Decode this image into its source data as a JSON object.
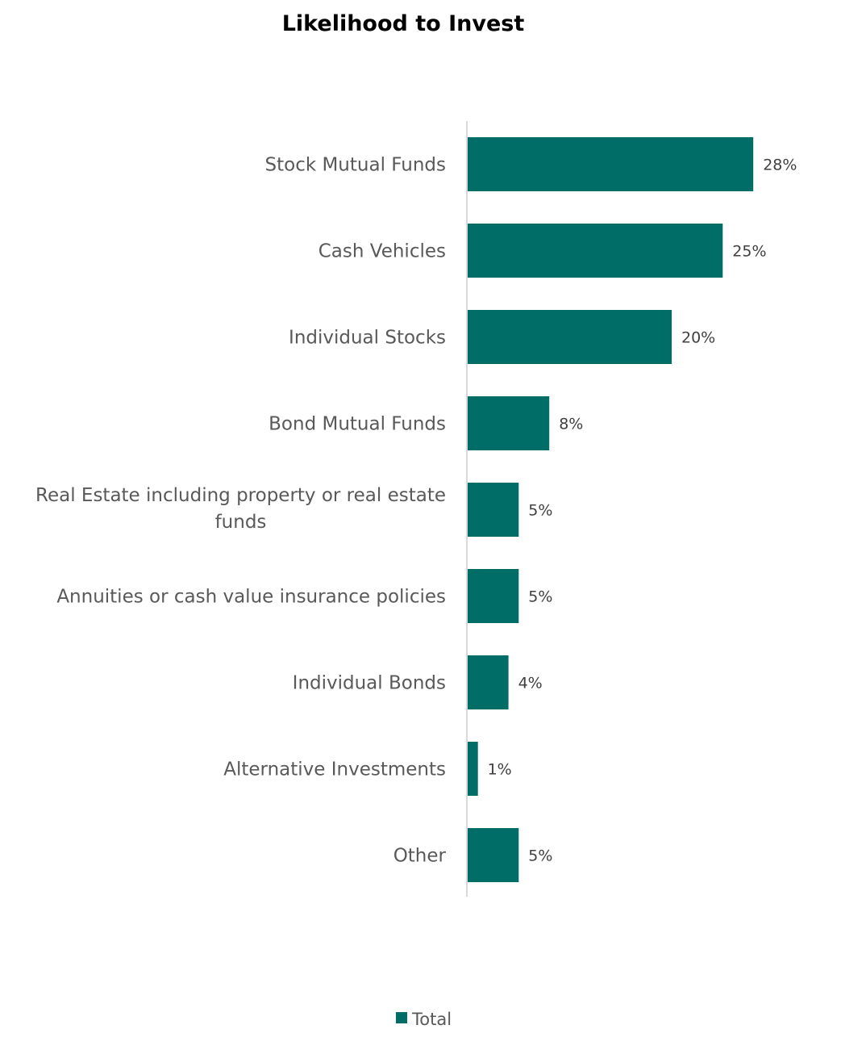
{
  "chart_data": {
    "type": "bar",
    "orientation": "horizontal",
    "title": "Likelihood to Invest",
    "categories": [
      "Stock Mutual Funds",
      "Cash Vehicles",
      "Individual Stocks",
      "Bond Mutual Funds",
      "Real Estate including property or real estate funds",
      "Annuities or cash value insurance policies",
      "Individual Bonds",
      "Alternative Investments",
      "Other"
    ],
    "category_label_lines": [
      [
        "Stock Mutual Funds"
      ],
      [
        "Cash Vehicles"
      ],
      [
        "Individual Stocks"
      ],
      [
        "Bond Mutual Funds"
      ],
      [
        "Real Estate including property or real estate",
        "funds"
      ],
      [
        "Annuities or cash value insurance policies"
      ],
      [
        "Individual Bonds"
      ],
      [
        "Alternative Investments"
      ],
      [
        "Other"
      ]
    ],
    "series": [
      {
        "name": "Total",
        "color": "#006d66",
        "values": [
          28,
          25,
          20,
          8,
          5,
          5,
          4,
          1,
          5
        ],
        "labels": [
          "28%",
          "25%",
          "20%",
          "8%",
          "5%",
          "5%",
          "4%",
          "1%",
          "5%"
        ]
      }
    ],
    "value_unit": "%",
    "xlim": [
      0,
      30
    ],
    "grid": false,
    "axis_line_color": "#d9d9d9",
    "legend": {
      "position": "bottom",
      "entries": [
        "Total"
      ]
    }
  }
}
